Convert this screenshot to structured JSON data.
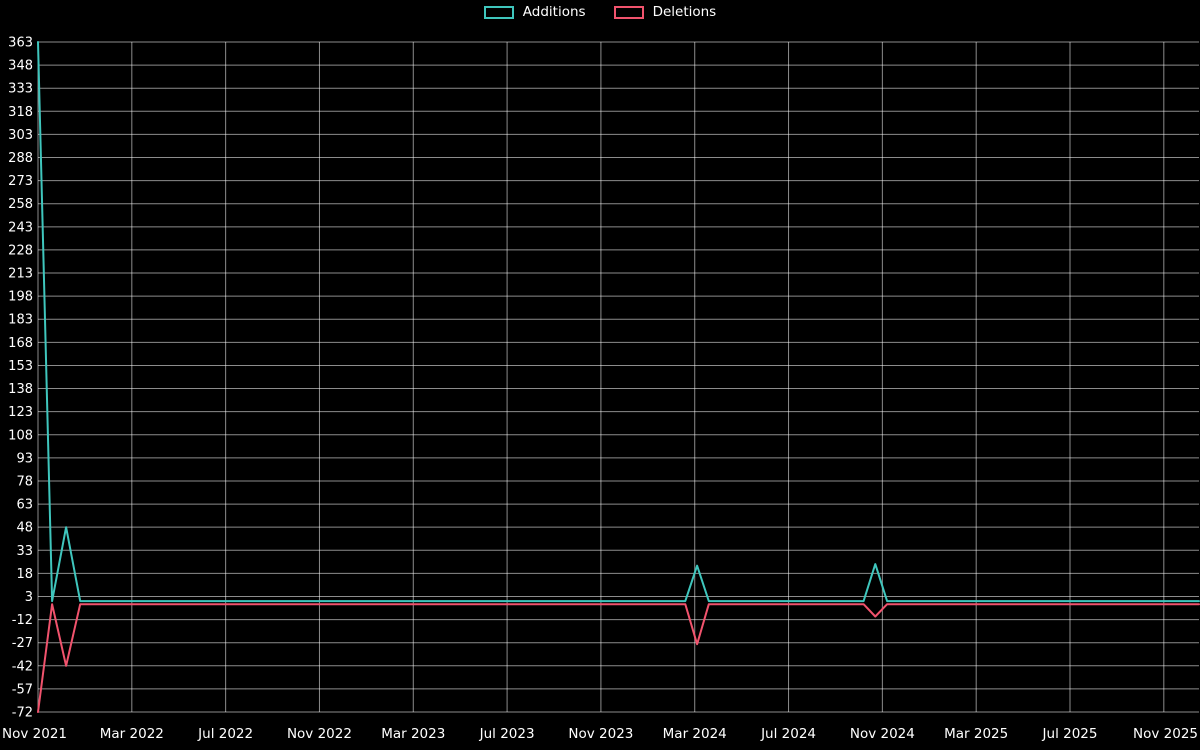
{
  "legend": {
    "items": [
      {
        "label": "Additions"
      },
      {
        "label": "Deletions"
      }
    ]
  },
  "chart_data": {
    "type": "line",
    "title": "",
    "xlabel": "",
    "ylabel": "",
    "background": "#000000",
    "axis_color": "#ffffff",
    "grid_color": "rgba(255,255,255,0.55)",
    "grid": true,
    "legend_position": "top-center",
    "x_unit": "months since Nov 2021",
    "xlim": [
      0,
      49.5
    ],
    "ylim": [
      -72,
      363
    ],
    "y_tick_step": 15,
    "y_ticks": [
      363,
      348,
      333,
      318,
      303,
      288,
      273,
      258,
      243,
      228,
      213,
      198,
      183,
      168,
      153,
      138,
      123,
      108,
      93,
      78,
      63,
      48,
      33,
      18,
      3,
      -12,
      -27,
      -42,
      -57,
      -72
    ],
    "x_ticks": [
      {
        "m": 0,
        "label": "Nov 2021"
      },
      {
        "m": 4,
        "label": "Mar 2022"
      },
      {
        "m": 8,
        "label": "Jul 2022"
      },
      {
        "m": 12,
        "label": "Nov 2022"
      },
      {
        "m": 16,
        "label": "Mar 2023"
      },
      {
        "m": 20,
        "label": "Jul 2023"
      },
      {
        "m": 24,
        "label": "Nov 2023"
      },
      {
        "m": 28,
        "label": "Mar 2024"
      },
      {
        "m": 32,
        "label": "Jul 2024"
      },
      {
        "m": 36,
        "label": "Nov 2024"
      },
      {
        "m": 40,
        "label": "Mar 2025"
      },
      {
        "m": 44,
        "label": "Jul 2025"
      },
      {
        "m": 48,
        "label": "Nov 2025"
      }
    ],
    "series": [
      {
        "name": "Additions",
        "color": "#3fc6bd",
        "points": [
          [
            0,
            363
          ],
          [
            0.6,
            0
          ],
          [
            1.2,
            48
          ],
          [
            1.8,
            0
          ],
          [
            27.6,
            0
          ],
          [
            28.1,
            23
          ],
          [
            28.6,
            0
          ],
          [
            35.2,
            0
          ],
          [
            35.7,
            24
          ],
          [
            36.2,
            0
          ],
          [
            49.5,
            0
          ]
        ]
      },
      {
        "name": "Deletions",
        "color": "#f1536d",
        "points": [
          [
            0,
            -72
          ],
          [
            0.6,
            -2
          ],
          [
            1.2,
            -42
          ],
          [
            1.8,
            -2
          ],
          [
            27.6,
            -2
          ],
          [
            28.1,
            -28
          ],
          [
            28.6,
            -2
          ],
          [
            35.2,
            -2
          ],
          [
            35.7,
            -10
          ],
          [
            36.2,
            -2
          ],
          [
            49.5,
            -2
          ]
        ]
      }
    ]
  }
}
